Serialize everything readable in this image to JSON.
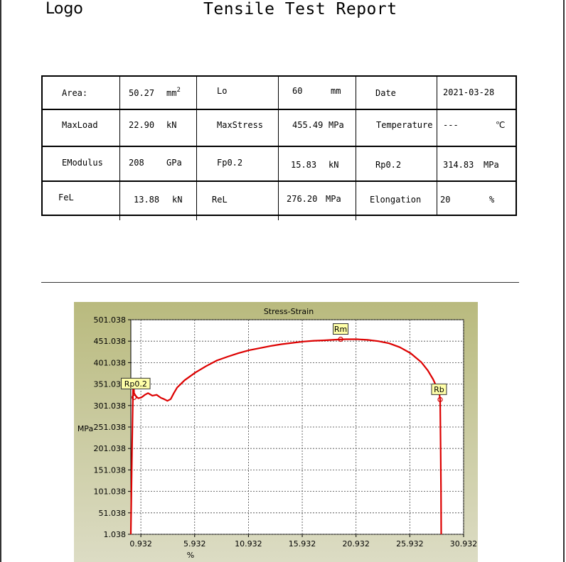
{
  "header": {
    "logo": "Logo",
    "title": "Tensile Test Report"
  },
  "params": {
    "area": {
      "label": "Area:",
      "value": "50.27",
      "unit": "mm",
      "unit_sup": "2"
    },
    "lo": {
      "label": "Lo",
      "value": "60",
      "unit": "mm"
    },
    "date": {
      "label": "Date",
      "value": "2021-03-28"
    },
    "maxload": {
      "label": "MaxLoad",
      "value": "22.90",
      "unit": "kN"
    },
    "maxstress": {
      "label": "MaxStress",
      "value": "455.49",
      "unit": "MPa"
    },
    "temperature": {
      "label": "Temperature",
      "value": "---",
      "unit": "℃"
    },
    "emodulus": {
      "label": "EModulus",
      "value": "208",
      "unit": "GPa"
    },
    "fp02": {
      "label": "Fp0.2",
      "value": "15.83",
      "unit": "kN"
    },
    "rp02": {
      "label": "Rp0.2",
      "value": "314.83",
      "unit": "MPa"
    },
    "fel": {
      "label": "FeL",
      "value": "13.88",
      "unit": "kN"
    },
    "rel": {
      "label": "ReL",
      "value": "276.20",
      "unit": "MPa"
    },
    "elongation": {
      "label": "Elongation",
      "value": "20",
      "unit": "%"
    }
  },
  "chart_data": {
    "type": "line",
    "title": "Stress-Strain",
    "xlabel": "%",
    "ylabel": "MPa",
    "xlim": [
      0.0,
      30.932
    ],
    "ylim": [
      1.038,
      501.038
    ],
    "xticks": [
      "0.932",
      "5.932",
      "10.932",
      "15.932",
      "20.932",
      "25.932",
      "30.932"
    ],
    "yticks": [
      "1.038",
      "51.038",
      "101.038",
      "151.038",
      "201.038",
      "251.038",
      "301.038",
      "351.038",
      "401.038",
      "451.038",
      "501.038"
    ],
    "grid": true,
    "colors": {
      "background": "#c3c495",
      "plot": "#ffffff",
      "line": "#dd0000",
      "marker_bg": "#ffffa8"
    },
    "series": [
      {
        "points": [
          [
            0.0,
            1.0
          ],
          [
            0.05,
            100
          ],
          [
            0.12,
            210
          ],
          [
            0.18,
            300
          ],
          [
            0.22,
            350
          ],
          [
            0.25,
            360
          ],
          [
            0.3,
            330
          ],
          [
            0.5,
            322
          ],
          [
            0.7,
            318
          ],
          [
            1.0,
            320
          ],
          [
            1.3,
            326
          ],
          [
            1.6,
            330
          ],
          [
            2.0,
            324
          ],
          [
            2.4,
            326
          ],
          [
            2.8,
            319
          ],
          [
            3.1,
            316
          ],
          [
            3.4,
            312
          ],
          [
            3.7,
            316
          ],
          [
            4.0,
            330
          ],
          [
            4.3,
            343
          ],
          [
            5.0,
            360
          ],
          [
            6.0,
            378
          ],
          [
            7.0,
            393
          ],
          [
            8.0,
            406
          ],
          [
            9.0,
            415
          ],
          [
            10.0,
            423
          ],
          [
            11.0,
            430
          ],
          [
            12.0,
            435
          ],
          [
            13.0,
            440
          ],
          [
            14.0,
            444
          ],
          [
            15.0,
            447
          ],
          [
            16.0,
            450
          ],
          [
            17.0,
            452
          ],
          [
            18.0,
            453
          ],
          [
            19.0,
            454.5
          ],
          [
            20.0,
            455.5
          ],
          [
            21.0,
            455.5
          ],
          [
            22.0,
            454
          ],
          [
            23.0,
            451
          ],
          [
            24.0,
            446
          ],
          [
            25.0,
            437
          ],
          [
            26.0,
            423
          ],
          [
            27.0,
            402
          ],
          [
            27.6,
            383
          ],
          [
            28.1,
            362
          ],
          [
            28.5,
            340
          ],
          [
            28.7,
            325
          ],
          [
            28.75,
            315
          ],
          [
            28.8,
            200
          ],
          [
            28.83,
            110
          ],
          [
            28.85,
            1.0
          ]
        ]
      }
    ],
    "annotations": [
      {
        "label": "Rp0.2",
        "x": 0.3,
        "y": 320
      },
      {
        "label": "Rm",
        "x": 19.5,
        "y": 455.5
      },
      {
        "label": "Rb",
        "x": 28.75,
        "y": 315
      }
    ]
  }
}
